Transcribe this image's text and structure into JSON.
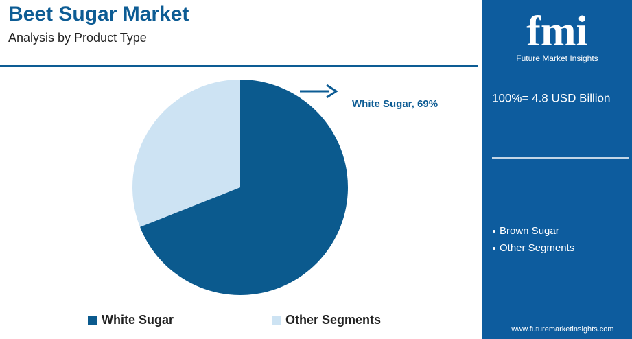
{
  "chart_data": {
    "type": "pie",
    "title": "Beet Sugar Market",
    "subtitle": "Analysis by Product Type",
    "categories": [
      "White Sugar",
      "Other Segments"
    ],
    "values": [
      69,
      31
    ],
    "value_labels": [
      "White Sugar, 69%",
      null
    ],
    "colors": [
      "#0b5a8e",
      "#cde3f3"
    ],
    "legend": "bottom"
  },
  "side_panel": {
    "logo": "fmi",
    "brand": "Future Market Insights",
    "total": "100%= 4.8 USD Billion",
    "segments": [
      "Brown Sugar",
      "Other Segments"
    ],
    "website": "www.futuremarketinsights.com"
  }
}
